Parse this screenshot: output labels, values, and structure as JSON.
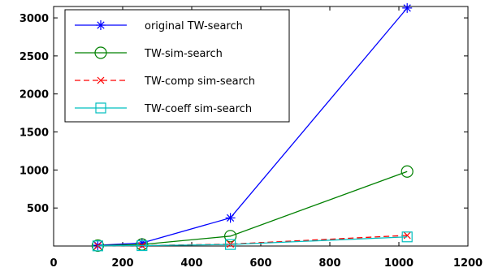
{
  "chart_data": {
    "type": "line",
    "title": "",
    "xlabel": "",
    "ylabel": "",
    "xlim": [
      0,
      1200
    ],
    "ylim": [
      0,
      3150
    ],
    "x_ticks": [
      0,
      200,
      400,
      600,
      800,
      1000,
      1200
    ],
    "y_ticks": [
      500,
      1000,
      1500,
      2000,
      2500,
      3000
    ],
    "grid": false,
    "legend_position": "top-left",
    "series": [
      {
        "name": "original TW-search",
        "color": "#0000ff",
        "marker": "star",
        "dash": "solid",
        "x": [
          128,
          256,
          512,
          1024
        ],
        "y": [
          10,
          40,
          370,
          3130
        ]
      },
      {
        "name": "TW-sim-search",
        "color": "#008000",
        "marker": "circle",
        "dash": "solid",
        "x": [
          128,
          256,
          512,
          1024
        ],
        "y": [
          5,
          20,
          130,
          980
        ]
      },
      {
        "name": "TW-comp sim-search",
        "color": "#ff0000",
        "marker": "x",
        "dash": "dashed",
        "x": [
          128,
          256,
          512,
          1024
        ],
        "y": [
          2,
          5,
          25,
          140
        ]
      },
      {
        "name": "TW-coeff sim-search",
        "color": "#00bfbf",
        "marker": "square",
        "dash": "solid",
        "x": [
          128,
          256,
          512,
          1024
        ],
        "y": [
          2,
          5,
          20,
          120
        ]
      }
    ]
  }
}
